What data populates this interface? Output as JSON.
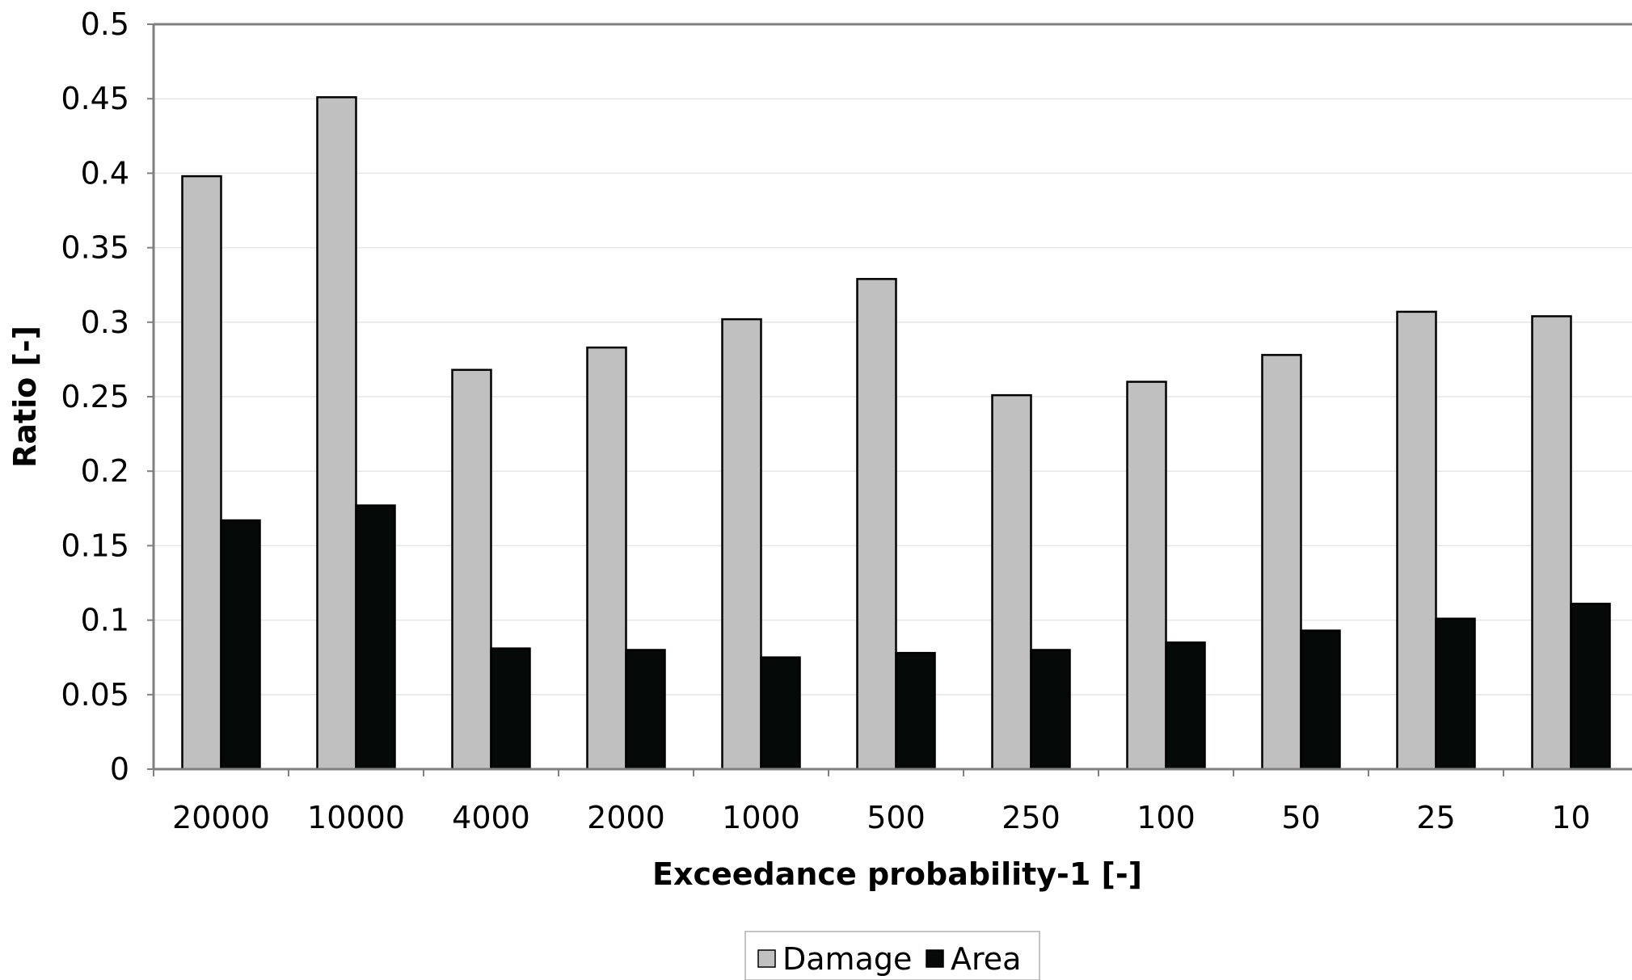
{
  "chart_data": {
    "type": "bar",
    "title": "",
    "xlabel": "Exceedance probability-1 [-]",
    "ylabel": "Ratio [-]",
    "ylim": [
      0,
      0.5
    ],
    "yticks": [
      "0",
      "0.05",
      "0.1",
      "0.15",
      "0.2",
      "0.25",
      "0.3",
      "0.35",
      "0.4",
      "0.45",
      "0.5"
    ],
    "categories": [
      "20000",
      "10000",
      "4000",
      "2000",
      "1000",
      "500",
      "250",
      "100",
      "50",
      "25",
      "10"
    ],
    "series": [
      {
        "name": "Damage",
        "color": "#c0c0c0",
        "values": [
          0.398,
          0.451,
          0.268,
          0.283,
          0.302,
          0.329,
          0.251,
          0.26,
          0.278,
          0.307,
          0.304
        ]
      },
      {
        "name": "Area",
        "color": "#050a08",
        "values": [
          0.167,
          0.177,
          0.081,
          0.08,
          0.075,
          0.078,
          0.08,
          0.085,
          0.093,
          0.101,
          0.111
        ]
      }
    ],
    "grid": true,
    "legend_position": "bottom-center"
  }
}
